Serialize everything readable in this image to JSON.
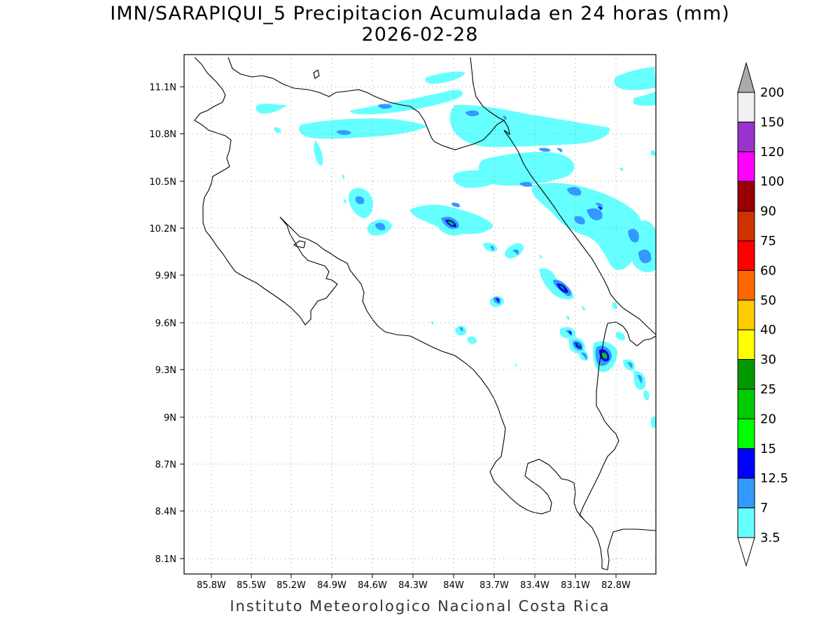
{
  "header": {
    "title": "IMN/SARAPIQUI_5 Precipitacion Acumulada en 24 horas (mm)",
    "date": "2026-02-28"
  },
  "footer": {
    "credit": "Instituto Meteorologico Nacional Costa Rica"
  },
  "map": {
    "lat_ticks": [
      "11.1N",
      "10.8N",
      "10.5N",
      "10.2N",
      "9.9N",
      "9.6N",
      "9.3N",
      "9N",
      "8.7N",
      "8.4N",
      "8.1N"
    ],
    "lon_ticks": [
      "85.8W",
      "85.5W",
      "85.2W",
      "84.9W",
      "84.6W",
      "84.3W",
      "84W",
      "83.7W",
      "83.4W",
      "83.1W",
      "82.8W"
    ],
    "grid": "dotted"
  },
  "colorbar": {
    "levels": [
      "200",
      "150",
      "120",
      "100",
      "90",
      "75",
      "60",
      "50",
      "40",
      "30",
      "25",
      "20",
      "15",
      "12.5",
      "7",
      "3.5"
    ],
    "colors": [
      "#f0f0f0",
      "#9933cc",
      "#ff00ff",
      "#990000",
      "#cc3300",
      "#ff0000",
      "#ff6600",
      "#ffcc00",
      "#ffff00",
      "#009900",
      "#00cc00",
      "#00ff00",
      "#0000ff",
      "#3399ff",
      "#66ffff"
    ],
    "top_arrow_color": "#aaaaaa",
    "bottom_arrow_color": "#ffffff"
  },
  "palette": {
    "light_cyan": "#66ffff",
    "medium_blue": "#3399ff",
    "dark_blue": "#0000ff",
    "green": "#00cc00",
    "coast": "#000000"
  }
}
